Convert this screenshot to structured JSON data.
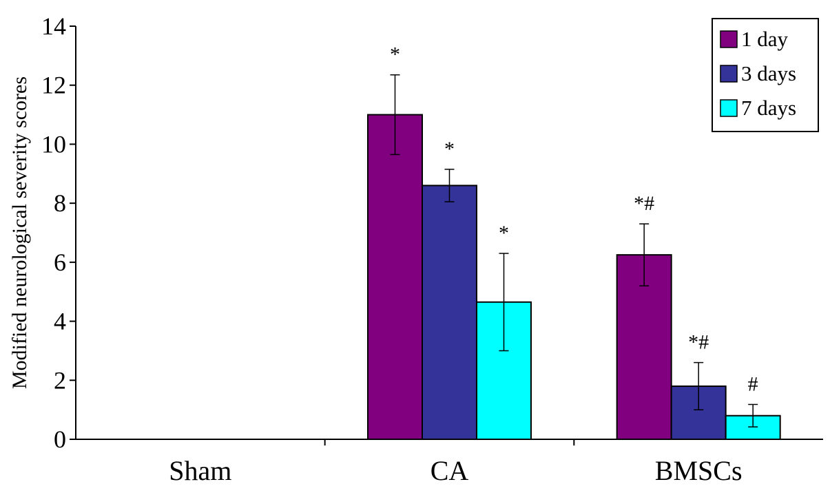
{
  "chart_data": {
    "type": "bar",
    "ylabel": "Modified neurological severity scores",
    "xlabel": "",
    "ylim": [
      0,
      14
    ],
    "yticks": [
      0,
      2,
      4,
      6,
      8,
      10,
      12,
      14
    ],
    "categories": [
      "Sham",
      "CA",
      "BMSCs"
    ],
    "series": [
      {
        "name": "1 day",
        "color": "#800080",
        "values": [
          0,
          11.0,
          6.25
        ],
        "errors": [
          0,
          1.35,
          1.05
        ],
        "annotations": [
          "",
          "*",
          "*#"
        ]
      },
      {
        "name": "3 days",
        "color": "#333399",
        "values": [
          0,
          8.6,
          1.8
        ],
        "errors": [
          0,
          0.55,
          0.8
        ],
        "annotations": [
          "",
          "*",
          "*#"
        ]
      },
      {
        "name": "7 days",
        "color": "#00ffff",
        "values": [
          0,
          4.65,
          0.8
        ],
        "errors": [
          0,
          1.65,
          0.38
        ],
        "annotations": [
          "",
          "*",
          "#"
        ]
      }
    ],
    "legend_position": "top-right",
    "grid": false
  }
}
